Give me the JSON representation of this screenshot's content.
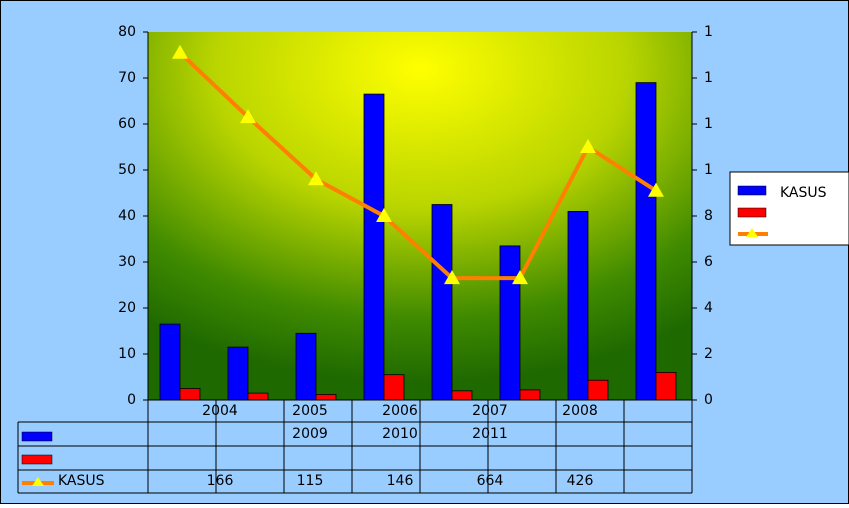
{
  "chart_data": {
    "type": "bar-line",
    "categories": [
      "2004",
      "2005",
      "2006",
      "2007",
      "2008",
      "2009",
      "2010",
      "2011"
    ],
    "series": [
      {
        "name": "KASUS",
        "color": "#0000ff",
        "values": [
          16.5,
          11.5,
          14.5,
          66.5,
          42.5,
          33.5,
          41,
          69
        ]
      },
      {
        "color": "#ff0000",
        "values": [
          2.5,
          1.5,
          1.2,
          5.5,
          2,
          2.2,
          4.3,
          6
        ]
      },
      {
        "name": "KASUS",
        "color": "#ff7f00",
        "marker_color": "#ffff00",
        "axis": "y2",
        "values": [
          15.1,
          12.3,
          9.6,
          8.0,
          5.3,
          5.3,
          11.0,
          9.1
        ]
      }
    ],
    "data_table_labels": [
      "166",
      "115",
      "146",
      "664",
      "426"
    ],
    "ylim": [
      0,
      80
    ],
    "yticks": [
      0,
      10,
      20,
      30,
      40,
      50,
      60,
      70,
      80
    ],
    "y2lim": [
      0,
      16
    ],
    "y2ticks": [
      0,
      2,
      4,
      6,
      8,
      {
        "value": 10,
        "label": "1"
      },
      {
        "value": 12,
        "label": "1"
      },
      {
        "value": 14,
        "label": "1"
      },
      {
        "value": 16,
        "label": "1"
      }
    ],
    "legend": "right"
  }
}
